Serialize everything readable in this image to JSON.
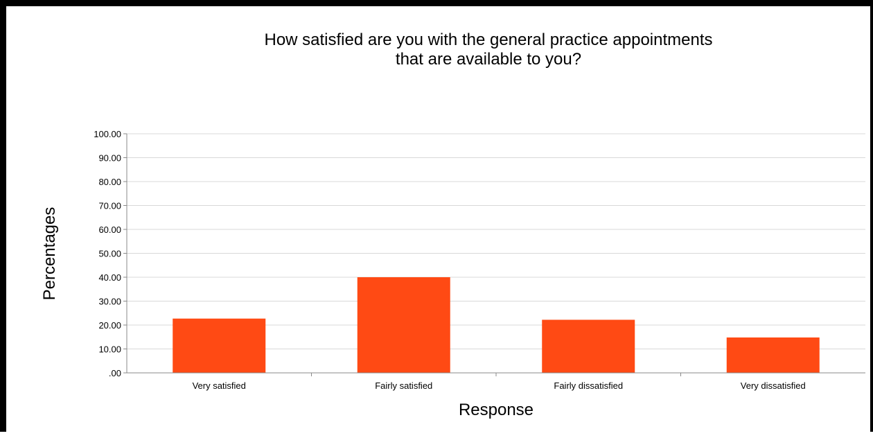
{
  "chart_data": {
    "type": "bar",
    "title": [
      "How satisfied are you with the general practice appointments",
      "that are available to you?"
    ],
    "xlabel": "Response",
    "ylabel": "Percentages",
    "categories": [
      "Very satisfied",
      "Fairly satisfied",
      "Fairly dissatisfied",
      "Very dissatisfied"
    ],
    "values": [
      22.7,
      40.0,
      22.2,
      14.8
    ],
    "ylim": [
      0,
      100
    ],
    "yticks": [
      ".00",
      "10.00",
      "20.00",
      "30.00",
      "40.00",
      "50.00",
      "60.00",
      "70.00",
      "80.00",
      "90.00",
      "100.00"
    ],
    "grid": true,
    "legend": "none",
    "bar_color": "#ff4a14",
    "grid_color": "#d8d8d8"
  }
}
